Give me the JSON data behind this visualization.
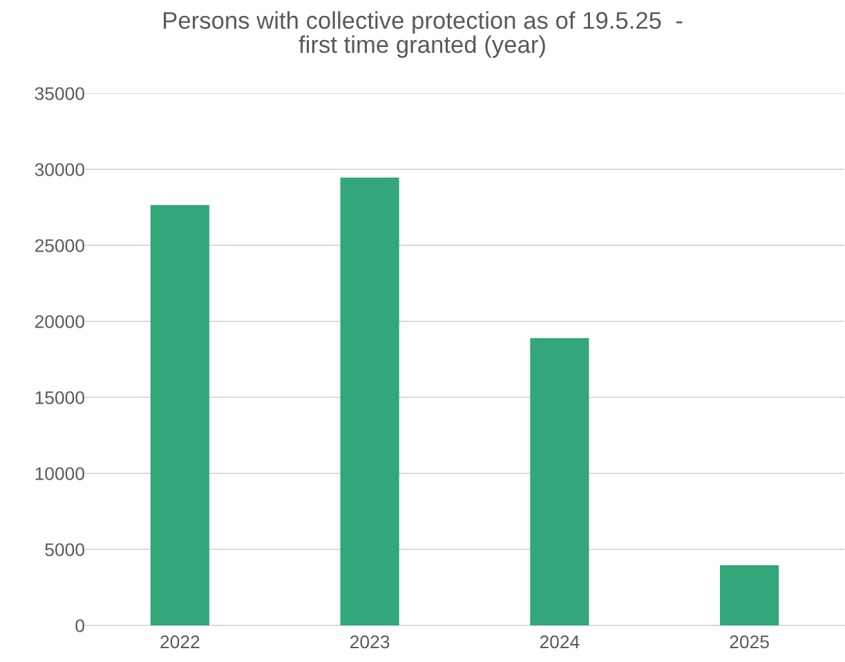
{
  "chart_data": {
    "type": "bar",
    "title": "Persons with collective protection as of 19.5.25  -\nfirst time granted (year)",
    "categories": [
      "2022",
      "2023",
      "2024",
      "2025"
    ],
    "values": [
      27650,
      29450,
      18900,
      3950
    ],
    "color": "#33a77a",
    "ylim": [
      0,
      35000
    ],
    "yticks": [
      0,
      5000,
      10000,
      15000,
      20000,
      25000,
      30000,
      35000
    ],
    "grid": "y",
    "legend": false
  }
}
